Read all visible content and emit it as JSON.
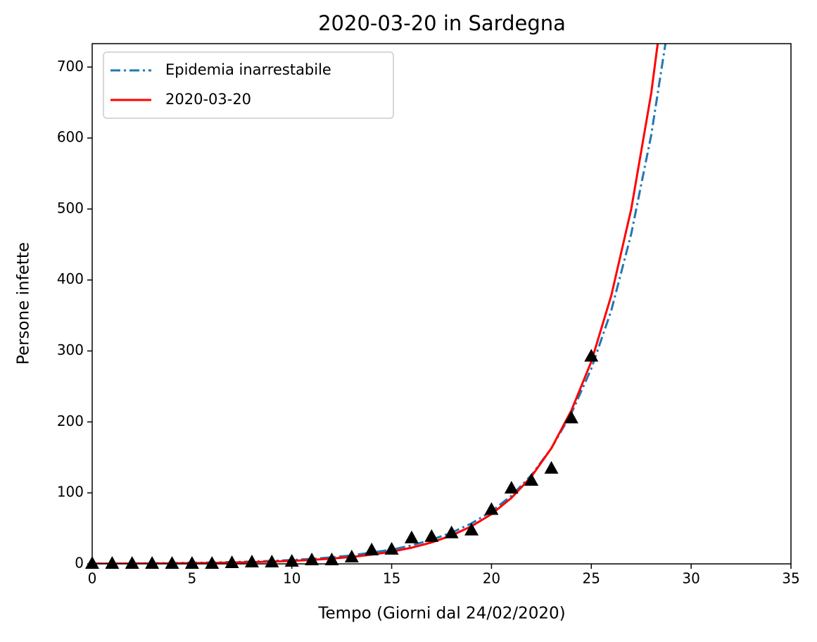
{
  "chart_data": {
    "type": "line",
    "title": "2020-03-20 in Sardegna",
    "x_label": "Tempo (Giorni dal 24/02/2020)",
    "y_label": "Persone infette",
    "xlim": [
      0,
      35
    ],
    "ylim": [
      0,
      733
    ],
    "xticks": [
      0,
      5,
      10,
      15,
      20,
      25,
      30,
      35
    ],
    "yticks": [
      0,
      100,
      200,
      300,
      400,
      500,
      600,
      700
    ],
    "legend": "upper left",
    "series": [
      {
        "name": "Epidemia inarrestabile",
        "color": "#1f77b4",
        "style": "dashdot",
        "x": [
          0,
          1,
          2,
          3,
          4,
          5,
          6,
          7,
          8,
          9,
          10,
          11,
          12,
          13,
          14,
          15,
          16,
          17,
          18,
          19,
          20,
          21,
          22,
          23,
          24,
          25,
          26,
          27,
          28,
          29
        ],
        "values": [
          0.39,
          0.51,
          0.66,
          0.86,
          1.1,
          1.5,
          1.9,
          2.5,
          3.2,
          4.2,
          5.4,
          7.1,
          9.2,
          12,
          16,
          20,
          26,
          34,
          44,
          57,
          74,
          96,
          125,
          163,
          212,
          275,
          357,
          465,
          604,
          785
        ]
      },
      {
        "name": "2020-03-20",
        "color": "#ff0000",
        "style": "solid",
        "x": [
          0,
          1,
          2,
          3,
          4,
          5,
          6,
          7,
          8,
          9,
          10,
          11,
          12,
          13,
          14,
          15,
          16,
          17,
          18,
          19,
          20,
          21,
          22,
          23,
          24,
          25,
          26,
          27,
          28,
          29
        ],
        "values": [
          0.25,
          0.34,
          0.44,
          0.59,
          0.78,
          1.04,
          1.38,
          1.82,
          2.4,
          3.2,
          4.2,
          5.6,
          7.4,
          9.8,
          13,
          17.2,
          22.8,
          30.2,
          40,
          53,
          70,
          93,
          123,
          163,
          216,
          285,
          378,
          500,
          663,
          878
        ]
      }
    ],
    "observed": {
      "color": "#000000",
      "marker": "triangle",
      "x": [
        0,
        1,
        2,
        3,
        4,
        5,
        6,
        7,
        8,
        9,
        10,
        11,
        12,
        13,
        14,
        15,
        16,
        17,
        18,
        19,
        20,
        21,
        22,
        23,
        24,
        25
      ],
      "values": [
        0,
        0,
        0,
        0,
        0,
        0,
        0,
        1,
        2,
        2,
        3,
        5,
        5,
        9,
        19,
        20,
        36,
        38,
        43,
        47,
        76,
        106,
        117,
        134,
        205,
        292
      ]
    }
  }
}
